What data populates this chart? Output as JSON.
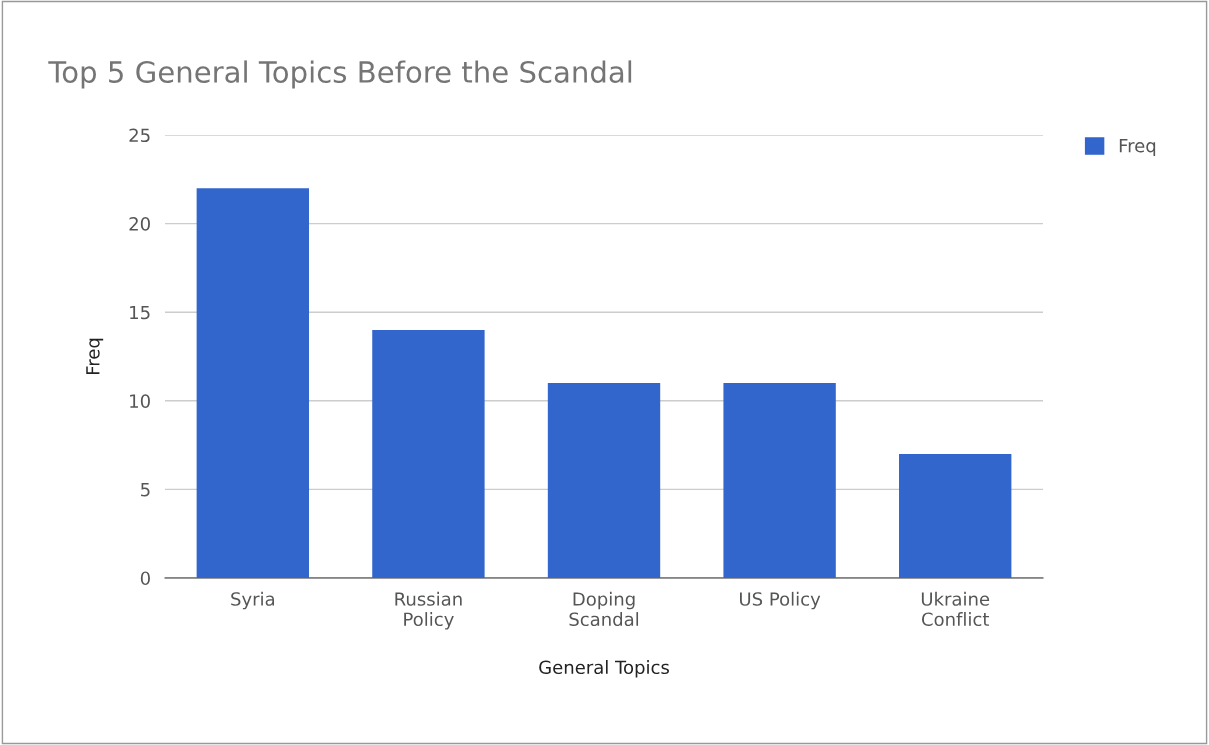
{
  "chart_data": {
    "type": "bar",
    "title": "Top 5 General Topics Before the Scandal",
    "xlabel": "General Topics",
    "ylabel": "Freq",
    "categories": [
      "Syria",
      "Russian Policy",
      "Doping Scandal",
      "US Policy",
      "Ukraine Conflict"
    ],
    "series": [
      {
        "name": "Freq",
        "color": "#3366cc",
        "values": [
          22,
          14,
          11,
          11,
          7
        ]
      }
    ],
    "ylim": [
      0,
      25
    ],
    "yticks": [
      0,
      5,
      10,
      15,
      20,
      25
    ],
    "grid": "y",
    "legend": "top right"
  }
}
